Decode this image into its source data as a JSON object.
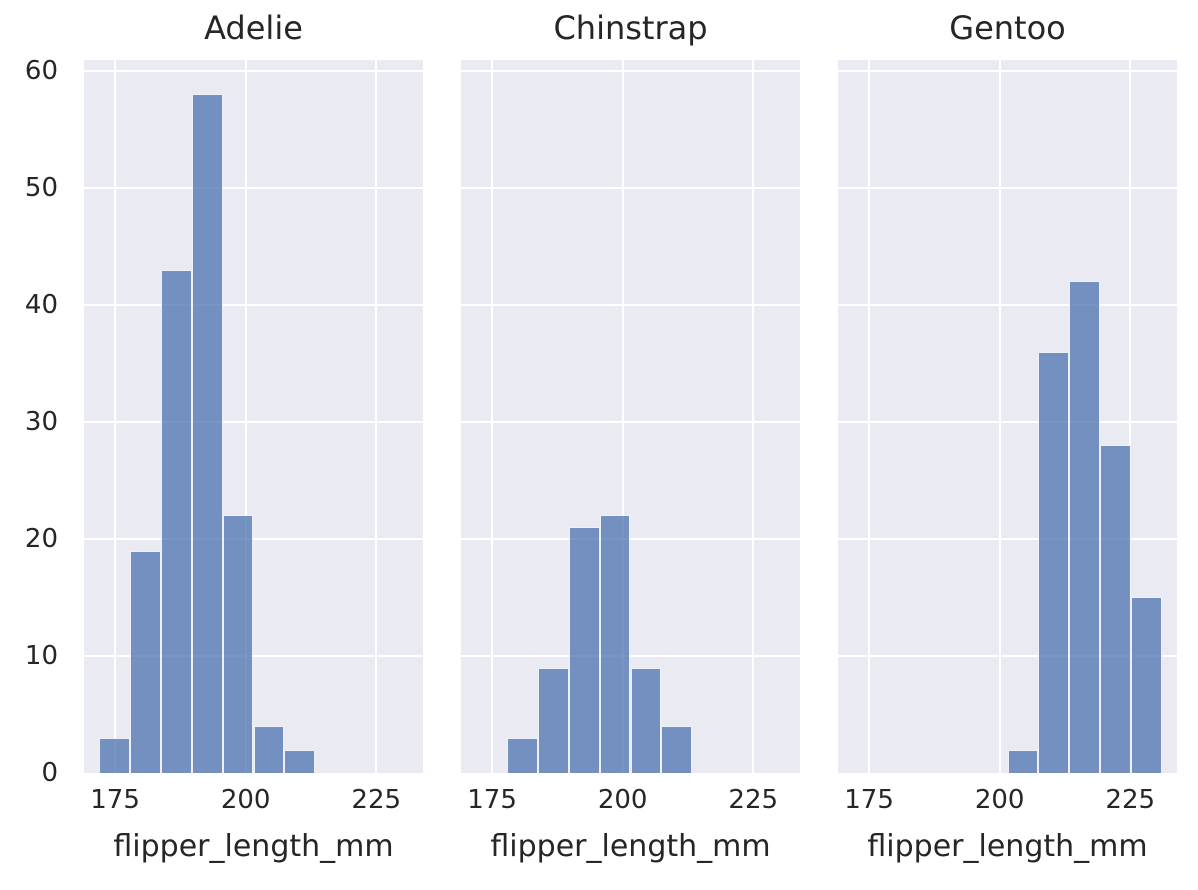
{
  "figure": {
    "background": "#ffffff",
    "panel_background": "#eaeaf2",
    "grid_color": "#ffffff",
    "bar_fill_rgba": "rgba(76, 114, 176, 0.75)",
    "bar_base_color": "#4c72b0",
    "bar_edge_color": "rgba(255, 255, 255, 0.88)",
    "text_color": "#262626"
  },
  "chart_data": {
    "type": "bar",
    "subtype": "faceted_histogram",
    "title": "",
    "xlabel": "flipper_length_mm",
    "ylabel": "",
    "xlim": [
      169.05,
      233.95
    ],
    "ylim": [
      0,
      60.9
    ],
    "xticks": [
      175,
      200,
      225
    ],
    "yticks": [
      0,
      10,
      20,
      30,
      40,
      50,
      60
    ],
    "grid": true,
    "legend": false,
    "bin_width": 5.9,
    "bin_edges": [
      172.0,
      177.9,
      183.8,
      189.7,
      195.6,
      201.5,
      207.4,
      213.3,
      219.2,
      225.1,
      231.0
    ],
    "facets": [
      {
        "title": "Adelie",
        "bars": [
          {
            "x0": 172.0,
            "x1": 177.9,
            "count": 3
          },
          {
            "x0": 177.9,
            "x1": 183.8,
            "count": 19
          },
          {
            "x0": 183.8,
            "x1": 189.7,
            "count": 43
          },
          {
            "x0": 189.7,
            "x1": 195.6,
            "count": 58
          },
          {
            "x0": 195.6,
            "x1": 201.5,
            "count": 22
          },
          {
            "x0": 201.5,
            "x1": 207.4,
            "count": 4
          },
          {
            "x0": 207.4,
            "x1": 213.3,
            "count": 2
          }
        ]
      },
      {
        "title": "Chinstrap",
        "bars": [
          {
            "x0": 177.9,
            "x1": 183.8,
            "count": 3
          },
          {
            "x0": 183.8,
            "x1": 189.7,
            "count": 9
          },
          {
            "x0": 189.7,
            "x1": 195.6,
            "count": 21
          },
          {
            "x0": 195.6,
            "x1": 201.5,
            "count": 22
          },
          {
            "x0": 201.5,
            "x1": 207.4,
            "count": 9
          },
          {
            "x0": 207.4,
            "x1": 213.3,
            "count": 4
          }
        ]
      },
      {
        "title": "Gentoo",
        "bars": [
          {
            "x0": 201.5,
            "x1": 207.4,
            "count": 2
          },
          {
            "x0": 207.4,
            "x1": 213.3,
            "count": 36
          },
          {
            "x0": 213.3,
            "x1": 219.2,
            "count": 42
          },
          {
            "x0": 219.2,
            "x1": 225.1,
            "count": 28
          },
          {
            "x0": 225.1,
            "x1": 231.0,
            "count": 15
          }
        ]
      }
    ]
  }
}
